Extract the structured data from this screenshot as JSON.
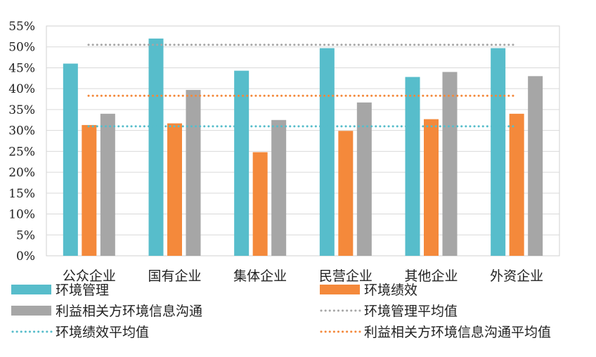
{
  "chart_data": {
    "type": "bar",
    "categories": [
      "公众企业",
      "国有企业",
      "集体企业",
      "民营企业",
      "其他企业",
      "外资企业"
    ],
    "series": [
      {
        "name": "环境管理",
        "color": "#57BDCB",
        "values": [
          46,
          52,
          44.3,
          49.7,
          42.8,
          49.7
        ]
      },
      {
        "name": "环境绩效",
        "color": "#F4893B",
        "values": [
          31.3,
          31.7,
          24.8,
          29.9,
          32.7,
          34
        ]
      },
      {
        "name": "利益相关方环境信息沟通",
        "color": "#A6A6A6",
        "values": [
          34,
          39.7,
          32.5,
          36.7,
          44,
          43
        ]
      }
    ],
    "reference_lines": [
      {
        "name": "环境管理平均值",
        "color": "#A6A6A6",
        "style": "dotted",
        "value": 50.5
      },
      {
        "name": "环境绩效平均值",
        "color": "#57BDCB",
        "style": "dotted",
        "value": 31
      },
      {
        "name": "利益相关方环境信息沟通平均值",
        "color": "#F4893B",
        "style": "dotted",
        "value": 38.3
      }
    ],
    "y_ticks": [
      "0%",
      "5%",
      "10%",
      "15%",
      "20%",
      "25%",
      "30%",
      "35%",
      "40%",
      "45%",
      "50%",
      "55%"
    ],
    "ylim": [
      0,
      55
    ],
    "grid": true,
    "legend_position": "bottom"
  }
}
